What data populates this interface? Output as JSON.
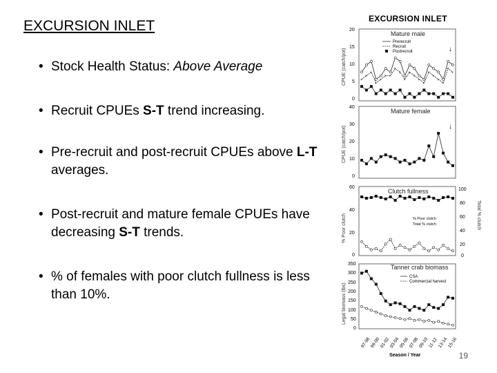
{
  "slide": {
    "title": "EXCURSION INLET",
    "page_number": "19"
  },
  "bullets": [
    {
      "pre": "Stock Health Status: ",
      "italic": "Above Average",
      "mid": "",
      "bold": "",
      "post": ""
    },
    {
      "pre": "Recruit CPUEs ",
      "italic": "",
      "mid": "",
      "bold": "S-T",
      "post": " trend increasing."
    },
    {
      "pre": "Pre-recruit and post-recruit CPUEs above ",
      "italic": "",
      "mid": "",
      "bold": "L-T",
      "post": " averages."
    },
    {
      "pre": "Post-recruit and mature female CPUEs have decreasing ",
      "italic": "",
      "mid": "",
      "bold": "S-T",
      "post": " trends."
    },
    {
      "pre": "% of females with poor clutch fullness is less than 10%.",
      "italic": "",
      "mid": "",
      "bold": "",
      "post": ""
    }
  ],
  "figure": {
    "title": "EXCURSION INLET",
    "x_label": "Season / Year",
    "x_ticks": [
      "97-98",
      "99-00",
      "01-02",
      "03-04",
      "05-06",
      "07-08",
      "09-10",
      "11-12",
      "13-14",
      "15-16"
    ],
    "panels": {
      "mature_male": {
        "title": "Mature male",
        "y_label": "CPUE (catch/pot)",
        "y_ticks": [
          "20",
          "15",
          "10",
          "5",
          "0"
        ],
        "legend": [
          "Prerecruit",
          "Recruit",
          "Postrecruit"
        ]
      },
      "mature_female": {
        "title": "Mature female",
        "y_label": "CPUE (catch/pot)",
        "y_ticks": [
          "40",
          "30",
          "20",
          "10",
          "0"
        ]
      },
      "clutch": {
        "title": "Clutch fullness",
        "y_label": "% Poor clutch",
        "y_ticks": [
          "60",
          "50",
          "40",
          "30",
          "20",
          "10",
          "0"
        ],
        "y2_label": "Total % clutch",
        "y2_ticks": [
          "100",
          "80",
          "60",
          "40",
          "20",
          "0"
        ],
        "legend": [
          "% Poor clutch",
          "Total % clutch"
        ]
      },
      "biomass": {
        "title": "Tanner crab biomass",
        "y_label": "Legal biomass (lbs)",
        "y_ticks": [
          "350",
          "300",
          "250",
          "200",
          "150",
          "100",
          "50",
          "0"
        ],
        "legend": [
          "CSA",
          "Commercial harvest"
        ]
      }
    }
  },
  "chart_data": [
    {
      "type": "line",
      "title": "Mature male",
      "ylabel": "CPUE (catch/pot)",
      "ylim": [
        0,
        20
      ],
      "x": [
        1,
        2,
        3,
        4,
        5,
        6,
        7,
        8,
        9,
        10,
        11,
        12,
        13,
        14,
        15,
        16,
        17,
        18,
        19,
        20
      ],
      "series": [
        {
          "name": "Prerecruit",
          "values": [
            8,
            10,
            11,
            6,
            7,
            9,
            8,
            12,
            11,
            7,
            10,
            9,
            7,
            6,
            10,
            9,
            8,
            6,
            11,
            10
          ]
        },
        {
          "name": "Recruit",
          "values": [
            6,
            7,
            8,
            5,
            6,
            7,
            7,
            9,
            8,
            6,
            8,
            7,
            6,
            5,
            8,
            7,
            6,
            5,
            9,
            8
          ]
        },
        {
          "name": "Postrecruit",
          "values": [
            4,
            3,
            4,
            2,
            3,
            2,
            3,
            2,
            3,
            1,
            2,
            1,
            2,
            3,
            2,
            2,
            1,
            2,
            2,
            1
          ]
        }
      ]
    },
    {
      "type": "line",
      "title": "Mature female",
      "ylabel": "CPUE (catch/pot)",
      "ylim": [
        0,
        40
      ],
      "x": [
        1,
        2,
        3,
        4,
        5,
        6,
        7,
        8,
        9,
        10,
        11,
        12,
        13,
        14,
        15,
        16,
        17,
        18,
        19,
        20
      ],
      "series": [
        {
          "name": "",
          "values": [
            10,
            8,
            11,
            9,
            12,
            13,
            12,
            11,
            9,
            10,
            8,
            9,
            11,
            10,
            18,
            12,
            25,
            14,
            9,
            7
          ]
        }
      ]
    },
    {
      "type": "line",
      "title": "Clutch fullness",
      "ylabel": "% Poor clutch",
      "ylim": [
        0,
        60
      ],
      "x": [
        1,
        2,
        3,
        4,
        5,
        6,
        7,
        8,
        9,
        10,
        11,
        12,
        13,
        14,
        15,
        16,
        17,
        18,
        19,
        20
      ],
      "series": [
        {
          "name": "% Poor clutch",
          "values": [
            12,
            8,
            5,
            6,
            4,
            10,
            14,
            6,
            9,
            7,
            5,
            8,
            11,
            6,
            4,
            7,
            5,
            9,
            6,
            4
          ]
        },
        {
          "name": "Total % clutch",
          "values": [
            85,
            83,
            84,
            86,
            84,
            82,
            85,
            80,
            86,
            83,
            85,
            81,
            84,
            82,
            85,
            83,
            80,
            84,
            85,
            83
          ]
        }
      ]
    },
    {
      "type": "line",
      "title": "Tanner crab biomass",
      "ylabel": "Legal biomass (lbs)",
      "ylim": [
        0,
        350
      ],
      "x": [
        1,
        2,
        3,
        4,
        5,
        6,
        7,
        8,
        9,
        10,
        11,
        12,
        13,
        14,
        15,
        16,
        17,
        18,
        19,
        20
      ],
      "series": [
        {
          "name": "CSA",
          "values": [
            300,
            310,
            270,
            240,
            190,
            150,
            130,
            140,
            135,
            120,
            100,
            120,
            110,
            100,
            130,
            115,
            110,
            130,
            170,
            165
          ]
        },
        {
          "name": "Commercial harvest",
          "values": [
            120,
            110,
            100,
            90,
            80,
            70,
            65,
            60,
            55,
            50,
            55,
            45,
            50,
            40,
            45,
            35,
            40,
            30,
            25,
            20
          ]
        }
      ]
    }
  ]
}
